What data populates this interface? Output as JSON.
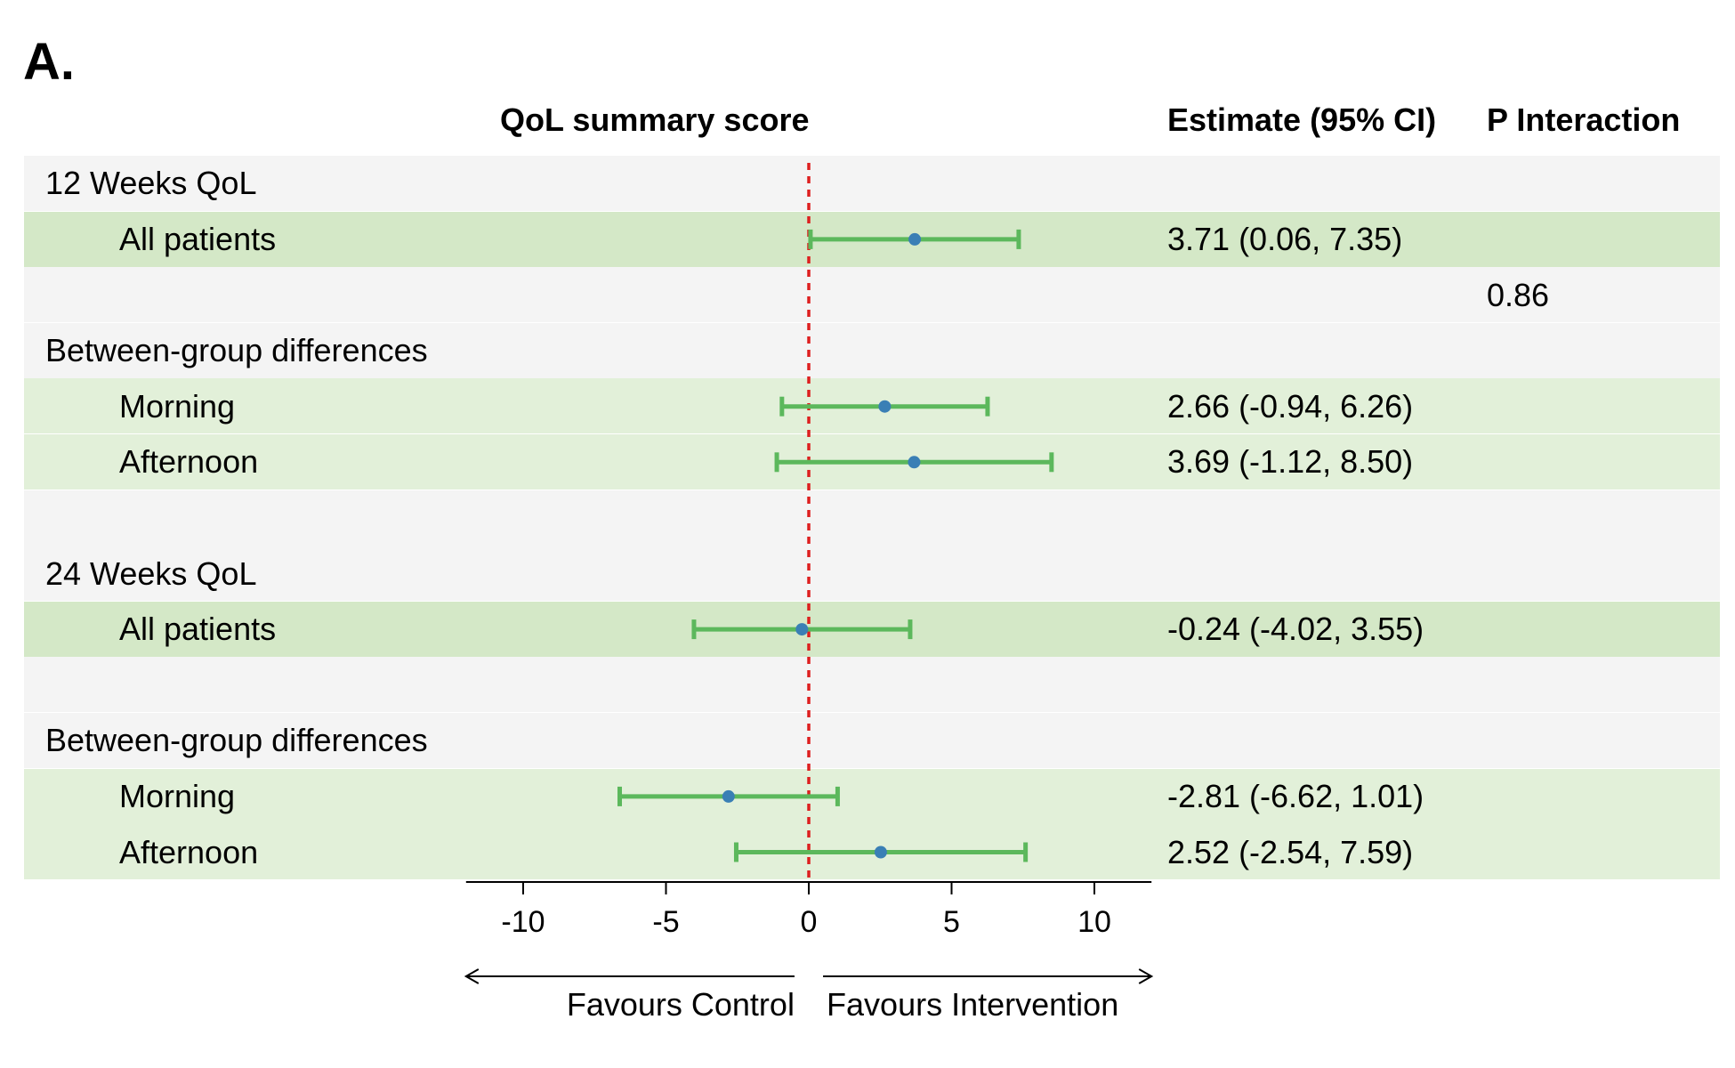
{
  "panel_label": "A.",
  "headers": {
    "plot": "QoL summary score",
    "estimate": "Estimate (95% CI)",
    "p_interaction": "P Interaction"
  },
  "rows": [
    {
      "label": "12 Weeks QoL",
      "indent": false,
      "shade": "light",
      "estimate_text": "",
      "p_text": "",
      "est": null,
      "lo": null,
      "hi": null
    },
    {
      "label": "All patients",
      "indent": true,
      "shade": "green-dark",
      "estimate_text": "3.71 (0.06, 7.35)",
      "p_text": "",
      "est": 3.71,
      "lo": 0.06,
      "hi": 7.35
    },
    {
      "label": "",
      "indent": false,
      "shade": "light",
      "estimate_text": "",
      "p_text": "0.86",
      "est": null,
      "lo": null,
      "hi": null
    },
    {
      "label": "Between-group differences",
      "indent": false,
      "shade": "light",
      "estimate_text": "",
      "p_text": "",
      "est": null,
      "lo": null,
      "hi": null
    },
    {
      "label": "Morning",
      "indent": true,
      "shade": "green-light",
      "estimate_text": "2.66 (-0.94, 6.26)",
      "p_text": "",
      "est": 2.66,
      "lo": -0.94,
      "hi": 6.26
    },
    {
      "label": "Afternoon",
      "indent": true,
      "shade": "green-light",
      "estimate_text": "3.69 (-1.12, 8.50)",
      "p_text": "",
      "est": 3.69,
      "lo": -1.12,
      "hi": 8.5
    },
    {
      "label": "",
      "indent": false,
      "shade": "light",
      "estimate_text": "",
      "p_text": "",
      "est": null,
      "lo": null,
      "hi": null
    },
    {
      "label": "24 Weeks QoL",
      "indent": false,
      "shade": "light",
      "estimate_text": "",
      "p_text": "",
      "est": null,
      "lo": null,
      "hi": null
    },
    {
      "label": "All patients",
      "indent": true,
      "shade": "green-dark",
      "estimate_text": "-0.24 (-4.02, 3.55)",
      "p_text": "",
      "est": -0.24,
      "lo": -4.02,
      "hi": 3.55
    },
    {
      "label": "",
      "indent": false,
      "shade": "light",
      "estimate_text": "",
      "p_text": "",
      "est": null,
      "lo": null,
      "hi": null
    },
    {
      "label": "Between-group differences",
      "indent": false,
      "shade": "light",
      "estimate_text": "",
      "p_text": "",
      "est": null,
      "lo": null,
      "hi": null
    },
    {
      "label": "Morning",
      "indent": true,
      "shade": "green-light",
      "estimate_text": "-2.81 (-6.62, 1.01)",
      "p_text": "",
      "est": -2.81,
      "lo": -6.62,
      "hi": 1.01
    },
    {
      "label": "Afternoon",
      "indent": true,
      "shade": "green-light",
      "estimate_text": "2.52 (-2.54, 7.59)",
      "p_text": "",
      "est": 2.52,
      "lo": -2.54,
      "hi": 7.59
    }
  ],
  "axis": {
    "ticks": [
      -10,
      -5,
      0,
      5,
      10
    ],
    "tick_labels": [
      "-10",
      "-5",
      "0",
      "5",
      "10"
    ],
    "xlim": [
      -12,
      12
    ],
    "left_direction": "Favours Control",
    "right_direction": "Favours Intervention"
  },
  "colors": {
    "row_light": "#f4f4f4",
    "row_green_dark": "#d4e8c7",
    "row_green_light": "#e2f0d9",
    "ci_line": "#5cb85c",
    "point": "#3a7fb5",
    "ref_line": "#dd1f1f"
  },
  "chart_data": {
    "type": "forest",
    "title": "QoL summary score",
    "xlim": [
      -12,
      12
    ],
    "reference_line": 0,
    "x_ticks": [
      -10,
      -5,
      0,
      5,
      10
    ],
    "series": [
      {
        "group": "12 Weeks QoL",
        "label": "All patients",
        "estimate": 3.71,
        "ci_low": 0.06,
        "ci_high": 7.35
      },
      {
        "group": "12 Weeks QoL",
        "label": "Morning",
        "estimate": 2.66,
        "ci_low": -0.94,
        "ci_high": 6.26
      },
      {
        "group": "12 Weeks QoL",
        "label": "Afternoon",
        "estimate": 3.69,
        "ci_low": -1.12,
        "ci_high": 8.5
      },
      {
        "group": "24 Weeks QoL",
        "label": "All patients",
        "estimate": -0.24,
        "ci_low": -4.02,
        "ci_high": 3.55
      },
      {
        "group": "24 Weeks QoL",
        "label": "Morning",
        "estimate": -2.81,
        "ci_low": -6.62,
        "ci_high": 1.01
      },
      {
        "group": "24 Weeks QoL",
        "label": "Afternoon",
        "estimate": 2.52,
        "ci_low": -2.54,
        "ci_high": 7.59
      }
    ],
    "p_interaction": "0.86"
  }
}
